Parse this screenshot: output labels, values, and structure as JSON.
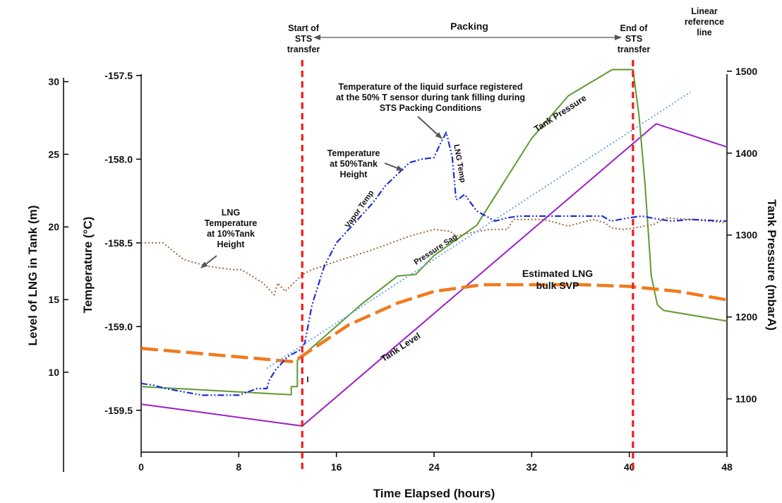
{
  "chart_data": {
    "type": "line",
    "title": "",
    "xlabel": "Time Elapsed (hours)",
    "ylabel_left_outer": "Level of LNG in Tank (m)",
    "ylabel_left": "Temperature (°C)",
    "ylabel_right": "Tank Pressure (mbarA)",
    "x_ticks": [
      "0",
      "8",
      "16",
      "24",
      "32",
      "40",
      "48"
    ],
    "xlim": [
      0,
      48
    ],
    "y_temp_ticks": [
      "-157.5",
      "-158.0",
      "-158.5",
      "-159.0",
      "-159.5"
    ],
    "y_temp_lim": [
      -159.75,
      -157.45
    ],
    "y_level_ticks": [
      "30",
      "25",
      "20",
      "15",
      "10"
    ],
    "y_level_lim": [
      4.5,
      31
    ],
    "y_pressure_ticks": [
      "1500",
      "1400",
      "1300",
      "1200",
      "1100"
    ],
    "y_pressure_lim": [
      1035,
      1505
    ],
    "grid": false,
    "series": [
      {
        "name": "Tank Level",
        "axis": "level",
        "color": "#9a1fc8",
        "style": "solid",
        "x": [
          0,
          13.2,
          42.2,
          48
        ],
        "y": [
          7.8,
          6.3,
          27.1,
          25.5
        ]
      },
      {
        "name": "Tank Pressure",
        "axis": "pressure",
        "color": "#5f9a2f",
        "style": "solid",
        "x": [
          0,
          12.3,
          12.3,
          12.8,
          12.8,
          18,
          21,
          22.5,
          24,
          27.5,
          32,
          35,
          38.6,
          40.3,
          40.8,
          41.3,
          41.8,
          42.3,
          42.8,
          48
        ],
        "y": [
          1115,
          1105,
          1115,
          1115,
          1147,
          1215,
          1250,
          1252,
          1275,
          1312,
          1418,
          1470,
          1502,
          1502,
          1445,
          1360,
          1250,
          1215,
          1208,
          1195
        ]
      },
      {
        "name": "Estimated LNG bulk SVP",
        "axis": "temperature",
        "color": "#f07a1e",
        "style": "dashed",
        "x": [
          0,
          12.5,
          13.3,
          17,
          21,
          24,
          28,
          32,
          36,
          40,
          44,
          48
        ],
        "y": [
          -159.13,
          -159.21,
          -159.17,
          -158.99,
          -158.86,
          -158.79,
          -158.75,
          -158.75,
          -158.75,
          -158.76,
          -158.79,
          -158.84
        ]
      },
      {
        "name": "LNG Temperature at 10%Tank Height",
        "axis": "temperature",
        "color": "#a0683c",
        "style": "dotted",
        "x": [
          0,
          1.8,
          3.5,
          5.5,
          7.5,
          8.2,
          10,
          10.9,
          11.2,
          11.8,
          12.2,
          13.2,
          14,
          16,
          19,
          22,
          24,
          25.3,
          25.8,
          27,
          28.5,
          30,
          30.5,
          31,
          33,
          35,
          37,
          38,
          38.5,
          39.5,
          40.5,
          42,
          43,
          45,
          48
        ],
        "y": [
          -158.5,
          -158.5,
          -158.6,
          -158.64,
          -158.66,
          -158.66,
          -158.74,
          -158.81,
          -158.74,
          -158.79,
          -158.76,
          -158.69,
          -158.66,
          -158.61,
          -158.54,
          -158.46,
          -158.42,
          -158.43,
          -158.46,
          -158.44,
          -158.42,
          -158.42,
          -158.36,
          -158.36,
          -158.36,
          -158.4,
          -158.36,
          -158.38,
          -158.41,
          -158.42,
          -158.41,
          -158.39,
          -158.35,
          -158.36,
          -158.38
        ]
      },
      {
        "name": "Temperature at 50%Tank Height",
        "axis": "temperature",
        "color": "#1d2fd8",
        "style": "dashdot",
        "x": [
          0,
          1,
          2,
          5,
          8,
          9.5,
          10.3,
          10.5,
          11,
          11.5,
          12,
          13,
          13.4,
          14,
          15,
          16,
          18,
          19,
          20,
          22,
          23,
          24,
          24.5,
          25,
          25.5,
          25.8,
          26,
          26.5,
          27.5,
          29,
          30,
          31,
          33,
          35,
          37,
          37.8,
          38.5,
          40,
          41,
          42.5,
          43.5,
          45,
          48
        ],
        "y": [
          -159.34,
          -159.35,
          -159.37,
          -159.41,
          -159.41,
          -159.37,
          -159.37,
          -159.32,
          -159.26,
          -159.22,
          -159.18,
          -159.14,
          -159.1,
          -158.87,
          -158.64,
          -158.5,
          -158.34,
          -158.26,
          -158.16,
          -158.02,
          -158.0,
          -157.99,
          -157.91,
          -157.84,
          -157.99,
          -158.24,
          -158.24,
          -158.21,
          -158.31,
          -158.37,
          -158.35,
          -158.34,
          -158.34,
          -158.34,
          -158.34,
          -158.34,
          -158.37,
          -158.35,
          -158.34,
          -158.36,
          -158.37,
          -158.36,
          -158.37
        ]
      },
      {
        "name": "Linear reference line",
        "axis": "temperature",
        "color": "#6aa6e8",
        "style": "dotted",
        "x": [
          10.3,
          45
        ],
        "y": [
          -159.25,
          -157.6
        ]
      }
    ],
    "vlines": [
      {
        "x": 13.2,
        "label": "Start of STS transfer",
        "color": "#ee1c1c"
      },
      {
        "x": 40.3,
        "label": "End of STS transfer",
        "color": "#ee1c1c"
      }
    ],
    "annotations": {
      "start_sts": [
        "Start of",
        "STS",
        "transfer"
      ],
      "end_sts": [
        "End of",
        "STS",
        "transfer"
      ],
      "packing": "Packing",
      "linear_ref": [
        "Linear",
        "reference",
        "line"
      ],
      "surface_temp": [
        "Temperature of the liquid surface registered",
        "at the 50% T sensor during tank filling during",
        "STS Packing Conditions"
      ],
      "temp_50": [
        "Temperature",
        "at 50%Tank",
        "Height"
      ],
      "temp_10": [
        "LNG",
        "Temperature",
        "at 10%Tank",
        "Height"
      ],
      "svp": [
        "Estimated LNG",
        "bulk SVP"
      ],
      "tank_level": "Tank Level",
      "tank_pressure": "Tank Pressure",
      "vapor_temp": "Vapor Temp",
      "lng_temp": "LNG Temp",
      "pressure_sag": "Pressure Sag"
    }
  }
}
